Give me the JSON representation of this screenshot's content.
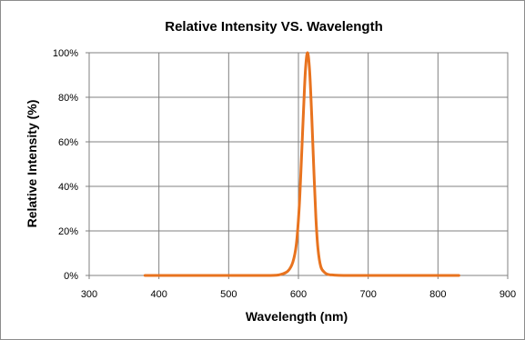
{
  "chart_data": {
    "type": "line",
    "title": "Relative Intensity VS. Wavelength",
    "xlabel": "Wavelength (nm)",
    "ylabel": "Relative Intensity (%)",
    "xlim": [
      300,
      900
    ],
    "ylim": [
      0,
      100
    ],
    "x_ticks": [
      "300",
      "400",
      "500",
      "600",
      "700",
      "800",
      "900"
    ],
    "y_ticks": [
      "0%",
      "20%",
      "40%",
      "60%",
      "80%",
      "100%"
    ],
    "grid": true,
    "legend": "none",
    "series": [
      {
        "color": "#e8731f",
        "x": [
          380,
          500,
          560,
          575,
          585,
          592,
          597,
          601,
          604,
          607,
          610,
          613,
          616,
          619,
          622,
          625,
          628,
          632,
          637,
          642,
          650,
          665,
          700,
          830
        ],
        "y": [
          0,
          0,
          0,
          0.5,
          2,
          6,
          14,
          30,
          50,
          72,
          92,
          100,
          92,
          72,
          48,
          26,
          12,
          4,
          1.5,
          0.5,
          0.2,
          0,
          0,
          0
        ]
      }
    ]
  }
}
